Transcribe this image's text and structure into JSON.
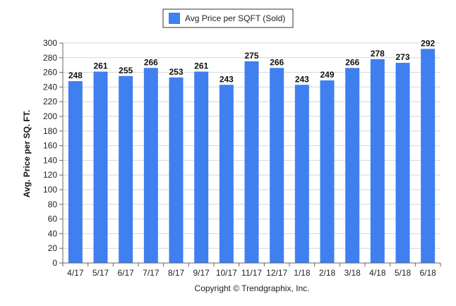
{
  "chart_data": {
    "type": "bar",
    "categories": [
      "4/17",
      "5/17",
      "6/17",
      "7/17",
      "8/17",
      "9/17",
      "10/17",
      "11/17",
      "12/17",
      "1/18",
      "2/18",
      "3/18",
      "4/18",
      "5/18",
      "6/18"
    ],
    "series": [
      {
        "name": "Avg Price per SQFT (Sold)",
        "values": [
          248,
          261,
          255,
          266,
          253,
          261,
          243,
          275,
          266,
          243,
          249,
          266,
          278,
          273,
          292
        ],
        "color": "#3f7ff0"
      }
    ],
    "title": "",
    "xlabel": "",
    "ylabel": "Avg. Price per SQ. FT.",
    "ylim": [
      0,
      300
    ],
    "yticks": [
      0,
      20,
      40,
      60,
      80,
      100,
      120,
      140,
      160,
      180,
      200,
      220,
      240,
      260,
      280,
      300
    ],
    "grid": true,
    "legend_position": "top-center",
    "data_labels": true
  },
  "legend": {
    "label": "Avg Price per SQFT (Sold)"
  },
  "footer": {
    "copyright": "Copyright © Trendgraphix, Inc."
  }
}
